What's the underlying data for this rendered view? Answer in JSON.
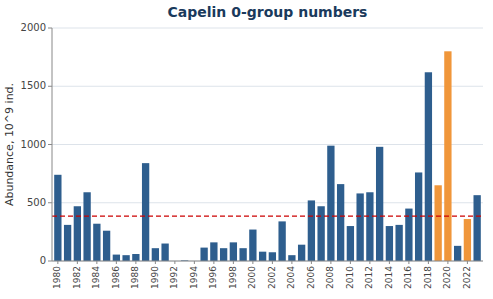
{
  "chart_data": {
    "type": "bar",
    "title": "Capelin 0-group numbers",
    "ylabel": "Abundance, 10^9 ind.",
    "categories": [
      "1980",
      null,
      "1982",
      null,
      "1984",
      null,
      "1986",
      null,
      "1988",
      null,
      "1990",
      null,
      "1992",
      null,
      "1994",
      null,
      "1996",
      null,
      "1998",
      null,
      "2000",
      null,
      "2002",
      null,
      "2004",
      null,
      "2006",
      null,
      "2008",
      null,
      "2010",
      null,
      "2012",
      null,
      "2014",
      null,
      "2016",
      null,
      "2018",
      null,
      "2020",
      null,
      "2022",
      null
    ],
    "values": [
      740,
      310,
      470,
      590,
      320,
      260,
      55,
      50,
      60,
      840,
      110,
      150,
      0,
      5,
      0,
      115,
      160,
      110,
      160,
      110,
      270,
      80,
      75,
      340,
      50,
      140,
      520,
      470,
      990,
      660,
      300,
      580,
      590,
      980,
      300,
      310,
      450,
      760,
      1620,
      650,
      1800,
      130,
      360,
      565
    ],
    "colors": [
      "#2e5e8e",
      "#2e5e8e",
      "#2e5e8e",
      "#2e5e8e",
      "#2e5e8e",
      "#2e5e8e",
      "#2e5e8e",
      "#2e5e8e",
      "#2e5e8e",
      "#2e5e8e",
      "#2e5e8e",
      "#2e5e8e",
      "#2e5e8e",
      "#2e5e8e",
      "#2e5e8e",
      "#2e5e8e",
      "#2e5e8e",
      "#2e5e8e",
      "#2e5e8e",
      "#2e5e8e",
      "#2e5e8e",
      "#2e5e8e",
      "#2e5e8e",
      "#2e5e8e",
      "#2e5e8e",
      "#2e5e8e",
      "#2e5e8e",
      "#2e5e8e",
      "#2e5e8e",
      "#2e5e8e",
      "#2e5e8e",
      "#2e5e8e",
      "#2e5e8e",
      "#2e5e8e",
      "#2e5e8e",
      "#2e5e8e",
      "#2e5e8e",
      "#2e5e8e",
      "#2e5e8e",
      "#f0963a",
      "#f0963a",
      "#2e5e8e",
      "#f0963a",
      "#2e5e8e"
    ],
    "average_line": {
      "value": 385,
      "color": "#cc0000"
    },
    "ylim": [
      0,
      2000
    ],
    "yticks": [
      0,
      500,
      1000,
      1500,
      2000
    ],
    "grid": true
  }
}
